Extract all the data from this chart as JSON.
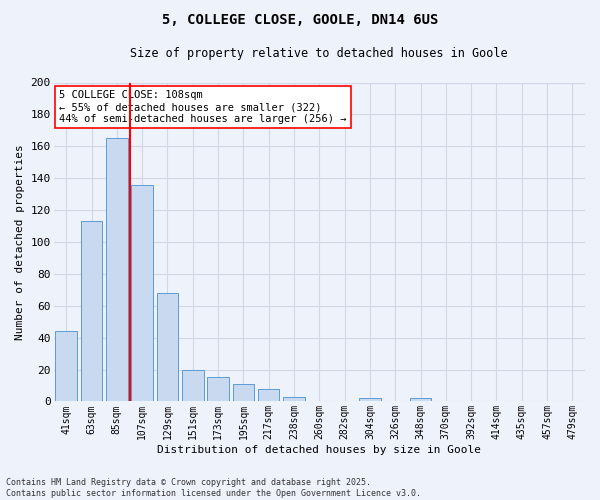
{
  "title_line1": "5, COLLEGE CLOSE, GOOLE, DN14 6US",
  "title_line2": "Size of property relative to detached houses in Goole",
  "xlabel": "Distribution of detached houses by size in Goole",
  "ylabel": "Number of detached properties",
  "categories": [
    "41sqm",
    "63sqm",
    "85sqm",
    "107sqm",
    "129sqm",
    "151sqm",
    "173sqm",
    "195sqm",
    "217sqm",
    "238sqm",
    "260sqm",
    "282sqm",
    "304sqm",
    "326sqm",
    "348sqm",
    "370sqm",
    "392sqm",
    "414sqm",
    "435sqm",
    "457sqm",
    "479sqm"
  ],
  "values": [
    44,
    113,
    165,
    136,
    68,
    20,
    15,
    11,
    8,
    3,
    0,
    0,
    2,
    0,
    2,
    0,
    0,
    0,
    0,
    0,
    0
  ],
  "bar_color": "#c9d9f0",
  "bar_edge_color": "#5b9bd5",
  "grid_color": "#d0d8e8",
  "background_color": "#eef2fb",
  "red_line_x": 2.5,
  "annotation_text": "5 COLLEGE CLOSE: 108sqm\n← 55% of detached houses are smaller (322)\n44% of semi-detached houses are larger (256) →",
  "footer_line1": "Contains HM Land Registry data © Crown copyright and database right 2025.",
  "footer_line2": "Contains public sector information licensed under the Open Government Licence v3.0.",
  "ylim": [
    0,
    200
  ],
  "yticks": [
    0,
    20,
    40,
    60,
    80,
    100,
    120,
    140,
    160,
    180,
    200
  ],
  "figsize": [
    6.0,
    5.0
  ],
  "dpi": 100
}
